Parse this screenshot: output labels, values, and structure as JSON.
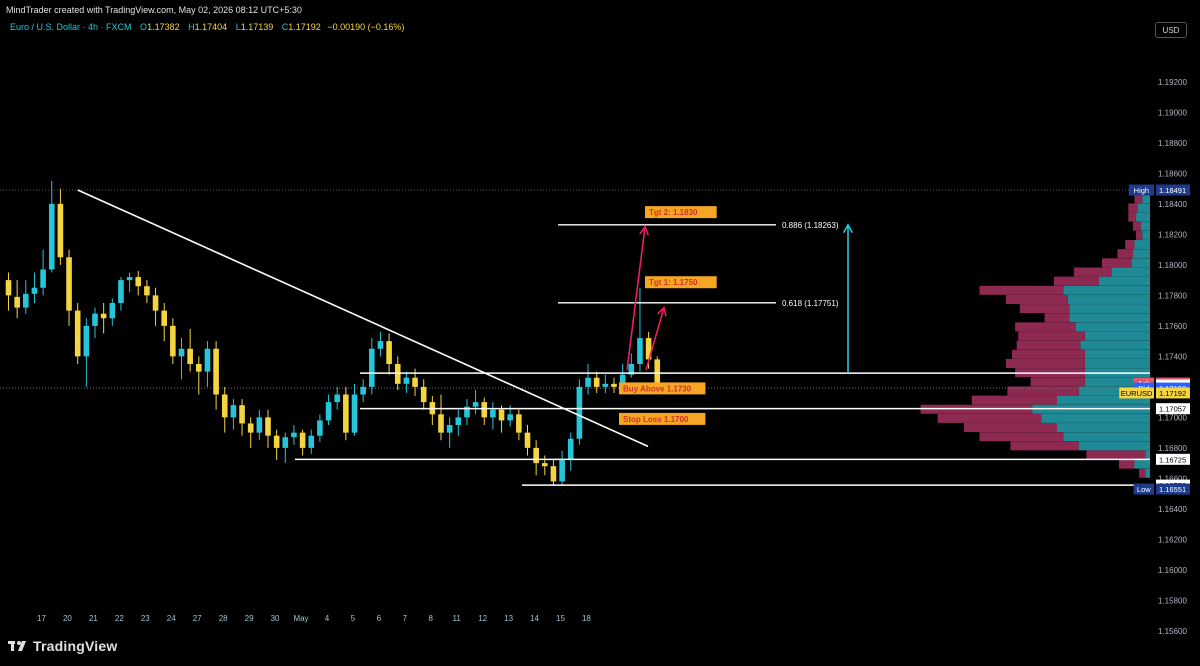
{
  "credit": "MindTrader created with TradingView.com, May 02, 2026 08:12 UTC+5:30",
  "symbol": {
    "name": "Euro / U.S. Dollar · 4h · FXCM",
    "open_label": "O",
    "open": "1.17382",
    "high_label": "H",
    "high": "1.17404",
    "low_label": "L",
    "low": "1.17139",
    "close_label": "C",
    "close": "1.17192",
    "change": "−0.00190 (−0.16%)"
  },
  "currency_button": "USD",
  "brand": "TradingView",
  "colors": {
    "bull": "#26c6da",
    "bear": "#f5d442",
    "profile_red": "#8e2a52",
    "profile_teal": "#1f8a96",
    "arrow_pink": "#e91e63",
    "arrow_cyan": "#26c6da",
    "label_bg": "#f5a623",
    "label_text": "#d32f2f"
  },
  "chart_data": {
    "type": "candlestick",
    "price_axis": [
      "1.19200",
      "1.19000",
      "1.18800",
      "1.18600",
      "1.18400",
      "1.18200",
      "1.18000",
      "1.17800",
      "1.17600",
      "1.17400",
      "1.17200",
      "1.17000",
      "1.16800",
      "1.16600",
      "1.16400",
      "1.16200",
      "1.16000",
      "1.15800",
      "1.15600"
    ],
    "y_range": [
      1.155,
      1.1935
    ],
    "time_axis": [
      {
        "label": "17",
        "x": 0
      },
      {
        "label": "20",
        "x": 3
      },
      {
        "label": "21",
        "x": 6
      },
      {
        "label": "22",
        "x": 9
      },
      {
        "label": "23",
        "x": 12
      },
      {
        "label": "24",
        "x": 15
      },
      {
        "label": "27",
        "x": 18
      },
      {
        "label": "28",
        "x": 21
      },
      {
        "label": "29",
        "x": 24
      },
      {
        "label": "30",
        "x": 27
      },
      {
        "label": "May",
        "x": 30
      },
      {
        "label": "4",
        "x": 33
      },
      {
        "label": "5",
        "x": 36
      },
      {
        "label": "6",
        "x": 39
      },
      {
        "label": "7",
        "x": 42
      },
      {
        "label": "8",
        "x": 45
      },
      {
        "label": "11",
        "x": 48
      },
      {
        "label": "12",
        "x": 51
      },
      {
        "label": "13",
        "x": 54
      },
      {
        "label": "14",
        "x": 57
      },
      {
        "label": "15",
        "x": 60
      },
      {
        "label": "18",
        "x": 63
      }
    ],
    "candles": [
      [
        1.179,
        1.178,
        1.1795,
        1.177
      ],
      [
        1.1779,
        1.1772,
        1.179,
        1.1765
      ],
      [
        1.1772,
        1.1781,
        1.179,
        1.1768
      ],
      [
        1.1781,
        1.1785,
        1.1795,
        1.1775
      ],
      [
        1.1785,
        1.1797,
        1.181,
        1.178
      ],
      [
        1.1797,
        1.184,
        1.1855,
        1.1795
      ],
      [
        1.184,
        1.1805,
        1.185,
        1.18
      ],
      [
        1.1805,
        1.177,
        1.181,
        1.176
      ],
      [
        1.177,
        1.174,
        1.1775,
        1.1735
      ],
      [
        1.174,
        1.176,
        1.1765,
        1.172
      ],
      [
        1.176,
        1.1768,
        1.1772,
        1.1752
      ],
      [
        1.1768,
        1.1765,
        1.1775,
        1.1755
      ],
      [
        1.1765,
        1.1775,
        1.1778,
        1.176
      ],
      [
        1.1775,
        1.179,
        1.1792,
        1.177
      ],
      [
        1.179,
        1.1792,
        1.1795,
        1.1782
      ],
      [
        1.1792,
        1.1786,
        1.1796,
        1.178
      ],
      [
        1.1786,
        1.178,
        1.179,
        1.1775
      ],
      [
        1.178,
        1.177,
        1.1785,
        1.176
      ],
      [
        1.177,
        1.176,
        1.1775,
        1.175
      ],
      [
        1.176,
        1.174,
        1.1765,
        1.1735
      ],
      [
        1.174,
        1.1745,
        1.1752,
        1.1725
      ],
      [
        1.1745,
        1.1735,
        1.1758,
        1.173
      ],
      [
        1.1735,
        1.173,
        1.174,
        1.1715
      ],
      [
        1.173,
        1.1745,
        1.175,
        1.172
      ],
      [
        1.1745,
        1.1715,
        1.175,
        1.1705
      ],
      [
        1.1715,
        1.17,
        1.172,
        1.169
      ],
      [
        1.17,
        1.1708,
        1.1712,
        1.1692
      ],
      [
        1.1708,
        1.1696,
        1.1712,
        1.1688
      ],
      [
        1.1696,
        1.169,
        1.17,
        1.168
      ],
      [
        1.169,
        1.17,
        1.1705,
        1.1685
      ],
      [
        1.17,
        1.1688,
        1.1705,
        1.168
      ],
      [
        1.1688,
        1.168,
        1.1692,
        1.1672
      ],
      [
        1.168,
        1.1687,
        1.169,
        1.167
      ],
      [
        1.1687,
        1.169,
        1.1695,
        1.1682
      ],
      [
        1.169,
        1.168,
        1.1692,
        1.1675
      ],
      [
        1.168,
        1.1688,
        1.1692,
        1.1676
      ],
      [
        1.1688,
        1.1698,
        1.1702,
        1.1684
      ],
      [
        1.1698,
        1.171,
        1.1715,
        1.1695
      ],
      [
        1.171,
        1.1715,
        1.172,
        1.1705
      ],
      [
        1.1715,
        1.169,
        1.172,
        1.1685
      ],
      [
        1.169,
        1.1715,
        1.1722,
        1.1688
      ],
      [
        1.1715,
        1.172,
        1.1725,
        1.171
      ],
      [
        1.172,
        1.1745,
        1.1752,
        1.1715
      ],
      [
        1.1745,
        1.175,
        1.1756,
        1.174
      ],
      [
        1.175,
        1.1735,
        1.1755,
        1.1728
      ],
      [
        1.1735,
        1.1722,
        1.174,
        1.1718
      ],
      [
        1.1722,
        1.1726,
        1.173,
        1.1716
      ],
      [
        1.1726,
        1.172,
        1.1732,
        1.1714
      ],
      [
        1.172,
        1.171,
        1.1725,
        1.1705
      ],
      [
        1.171,
        1.1702,
        1.1714,
        1.1695
      ],
      [
        1.1702,
        1.169,
        1.1715,
        1.1685
      ],
      [
        1.169,
        1.1695,
        1.17,
        1.168
      ],
      [
        1.1695,
        1.17,
        1.1705,
        1.1688
      ],
      [
        1.17,
        1.1707,
        1.1712,
        1.1695
      ],
      [
        1.1707,
        1.171,
        1.1718,
        1.1702
      ],
      [
        1.171,
        1.17,
        1.1713,
        1.1695
      ],
      [
        1.17,
        1.1705,
        1.171,
        1.1692
      ],
      [
        1.1705,
        1.1698,
        1.1708,
        1.169
      ],
      [
        1.1698,
        1.1702,
        1.1708,
        1.1694
      ],
      [
        1.1702,
        1.169,
        1.1705,
        1.1685
      ],
      [
        1.169,
        1.168,
        1.1695,
        1.1675
      ],
      [
        1.168,
        1.167,
        1.1685,
        1.1662
      ],
      [
        1.167,
        1.1668,
        1.1675,
        1.1662
      ],
      [
        1.1668,
        1.1658,
        1.1672,
        1.1655
      ],
      [
        1.1658,
        1.1672,
        1.1678,
        1.1655
      ],
      [
        1.1672,
        1.1686,
        1.169,
        1.1665
      ],
      [
        1.1686,
        1.172,
        1.1725,
        1.1682
      ],
      [
        1.172,
        1.1726,
        1.1735,
        1.1715
      ],
      [
        1.1726,
        1.172,
        1.173,
        1.1716
      ],
      [
        1.172,
        1.1722,
        1.1728,
        1.1716
      ],
      [
        1.1722,
        1.172,
        1.1726,
        1.1716
      ],
      [
        1.172,
        1.1728,
        1.1735,
        1.1718
      ],
      [
        1.1728,
        1.1735,
        1.1742,
        1.1726
      ],
      [
        1.1735,
        1.1752,
        1.1785,
        1.173
      ],
      [
        1.1752,
        1.1738,
        1.1756,
        1.1732
      ],
      [
        1.1738,
        1.1719,
        1.174,
        1.1715
      ]
    ],
    "high_price": 1.18491,
    "low_price": 1.16551,
    "fib_levels": [
      {
        "label": "0.886 (1.18263)",
        "price": 1.18263
      },
      {
        "label": "0.618 (1.17751)",
        "price": 1.17751
      }
    ],
    "annotations": {
      "tgt2": "Tgt 2: 1.1830",
      "tgt1": "Tgt 1: 1.1750",
      "buy": "Buy Above 1.1730",
      "stop": "Stop Loss 1.1700"
    },
    "price_labels": [
      {
        "text": "High",
        "price_text": "1.18491",
        "price": 1.18491,
        "tag_bg": "#1e3a8a"
      },
      {
        "text": "Ask",
        "price_text": "1.17225",
        "price": 1.17225,
        "tag_bg": "#e05a6b"
      },
      {
        "text": "",
        "price_text": "1.17212",
        "price": 1.17212,
        "tag_bg": ""
      },
      {
        "text": "Bid",
        "price_text": "1.17192",
        "price": 1.17192,
        "tag_bg": "#2962ff"
      },
      {
        "text": "EURUSD",
        "price_text": "1.17192",
        "price": 1.1716,
        "tag_bg": "#f5d442"
      },
      {
        "text": "",
        "price_text": "1.17057",
        "price": 1.17057,
        "tag_bg": ""
      },
      {
        "text": "",
        "price_text": "1.16725",
        "price": 1.16725,
        "tag_bg": ""
      },
      {
        "text": "",
        "price_text": "1.16556",
        "price": 1.16556,
        "tag_bg": ""
      },
      {
        "text": "Low",
        "price_text": "1.16551",
        "price": 1.1653,
        "tag_bg": "#1e3a8a"
      }
    ],
    "volume_profile": [
      [
        1.1843,
        0.5,
        0.5
      ],
      [
        1.1837,
        0.6,
        0.8
      ],
      [
        1.1831,
        0.5,
        0.9
      ],
      [
        1.1825,
        0.5,
        0.6
      ],
      [
        1.1819,
        0.4,
        0.5
      ],
      [
        1.1813,
        0.6,
        1.0
      ],
      [
        1.1807,
        1.0,
        1.1
      ],
      [
        1.1801,
        1.9,
        1.2
      ],
      [
        1.1795,
        2.4,
        2.5
      ],
      [
        1.1789,
        2.9,
        3.3
      ],
      [
        1.1783,
        5.4,
        5.6
      ],
      [
        1.1777,
        4.0,
        5.3
      ],
      [
        1.1771,
        3.2,
        5.2
      ],
      [
        1.1765,
        1.6,
        5.2
      ],
      [
        1.1759,
        3.9,
        4.8
      ],
      [
        1.1753,
        4.3,
        4.2
      ],
      [
        1.1747,
        4.1,
        4.5
      ],
      [
        1.1741,
        4.7,
        4.2
      ],
      [
        1.1735,
        5.1,
        4.2
      ],
      [
        1.1729,
        4.5,
        4.2
      ],
      [
        1.1723,
        3.5,
        4.2
      ],
      [
        1.1717,
        4.6,
        4.6
      ],
      [
        1.1711,
        5.5,
        6.0
      ],
      [
        1.1705,
        7.2,
        7.6
      ],
      [
        1.1699,
        6.7,
        7.0
      ],
      [
        1.1693,
        6.0,
        6.0
      ],
      [
        1.1687,
        5.4,
        5.6
      ],
      [
        1.1681,
        4.4,
        4.6
      ],
      [
        1.1675,
        3.8,
        0.3
      ],
      [
        1.1669,
        1.0,
        1.0
      ],
      [
        1.1663,
        0.4,
        0.3
      ]
    ]
  }
}
